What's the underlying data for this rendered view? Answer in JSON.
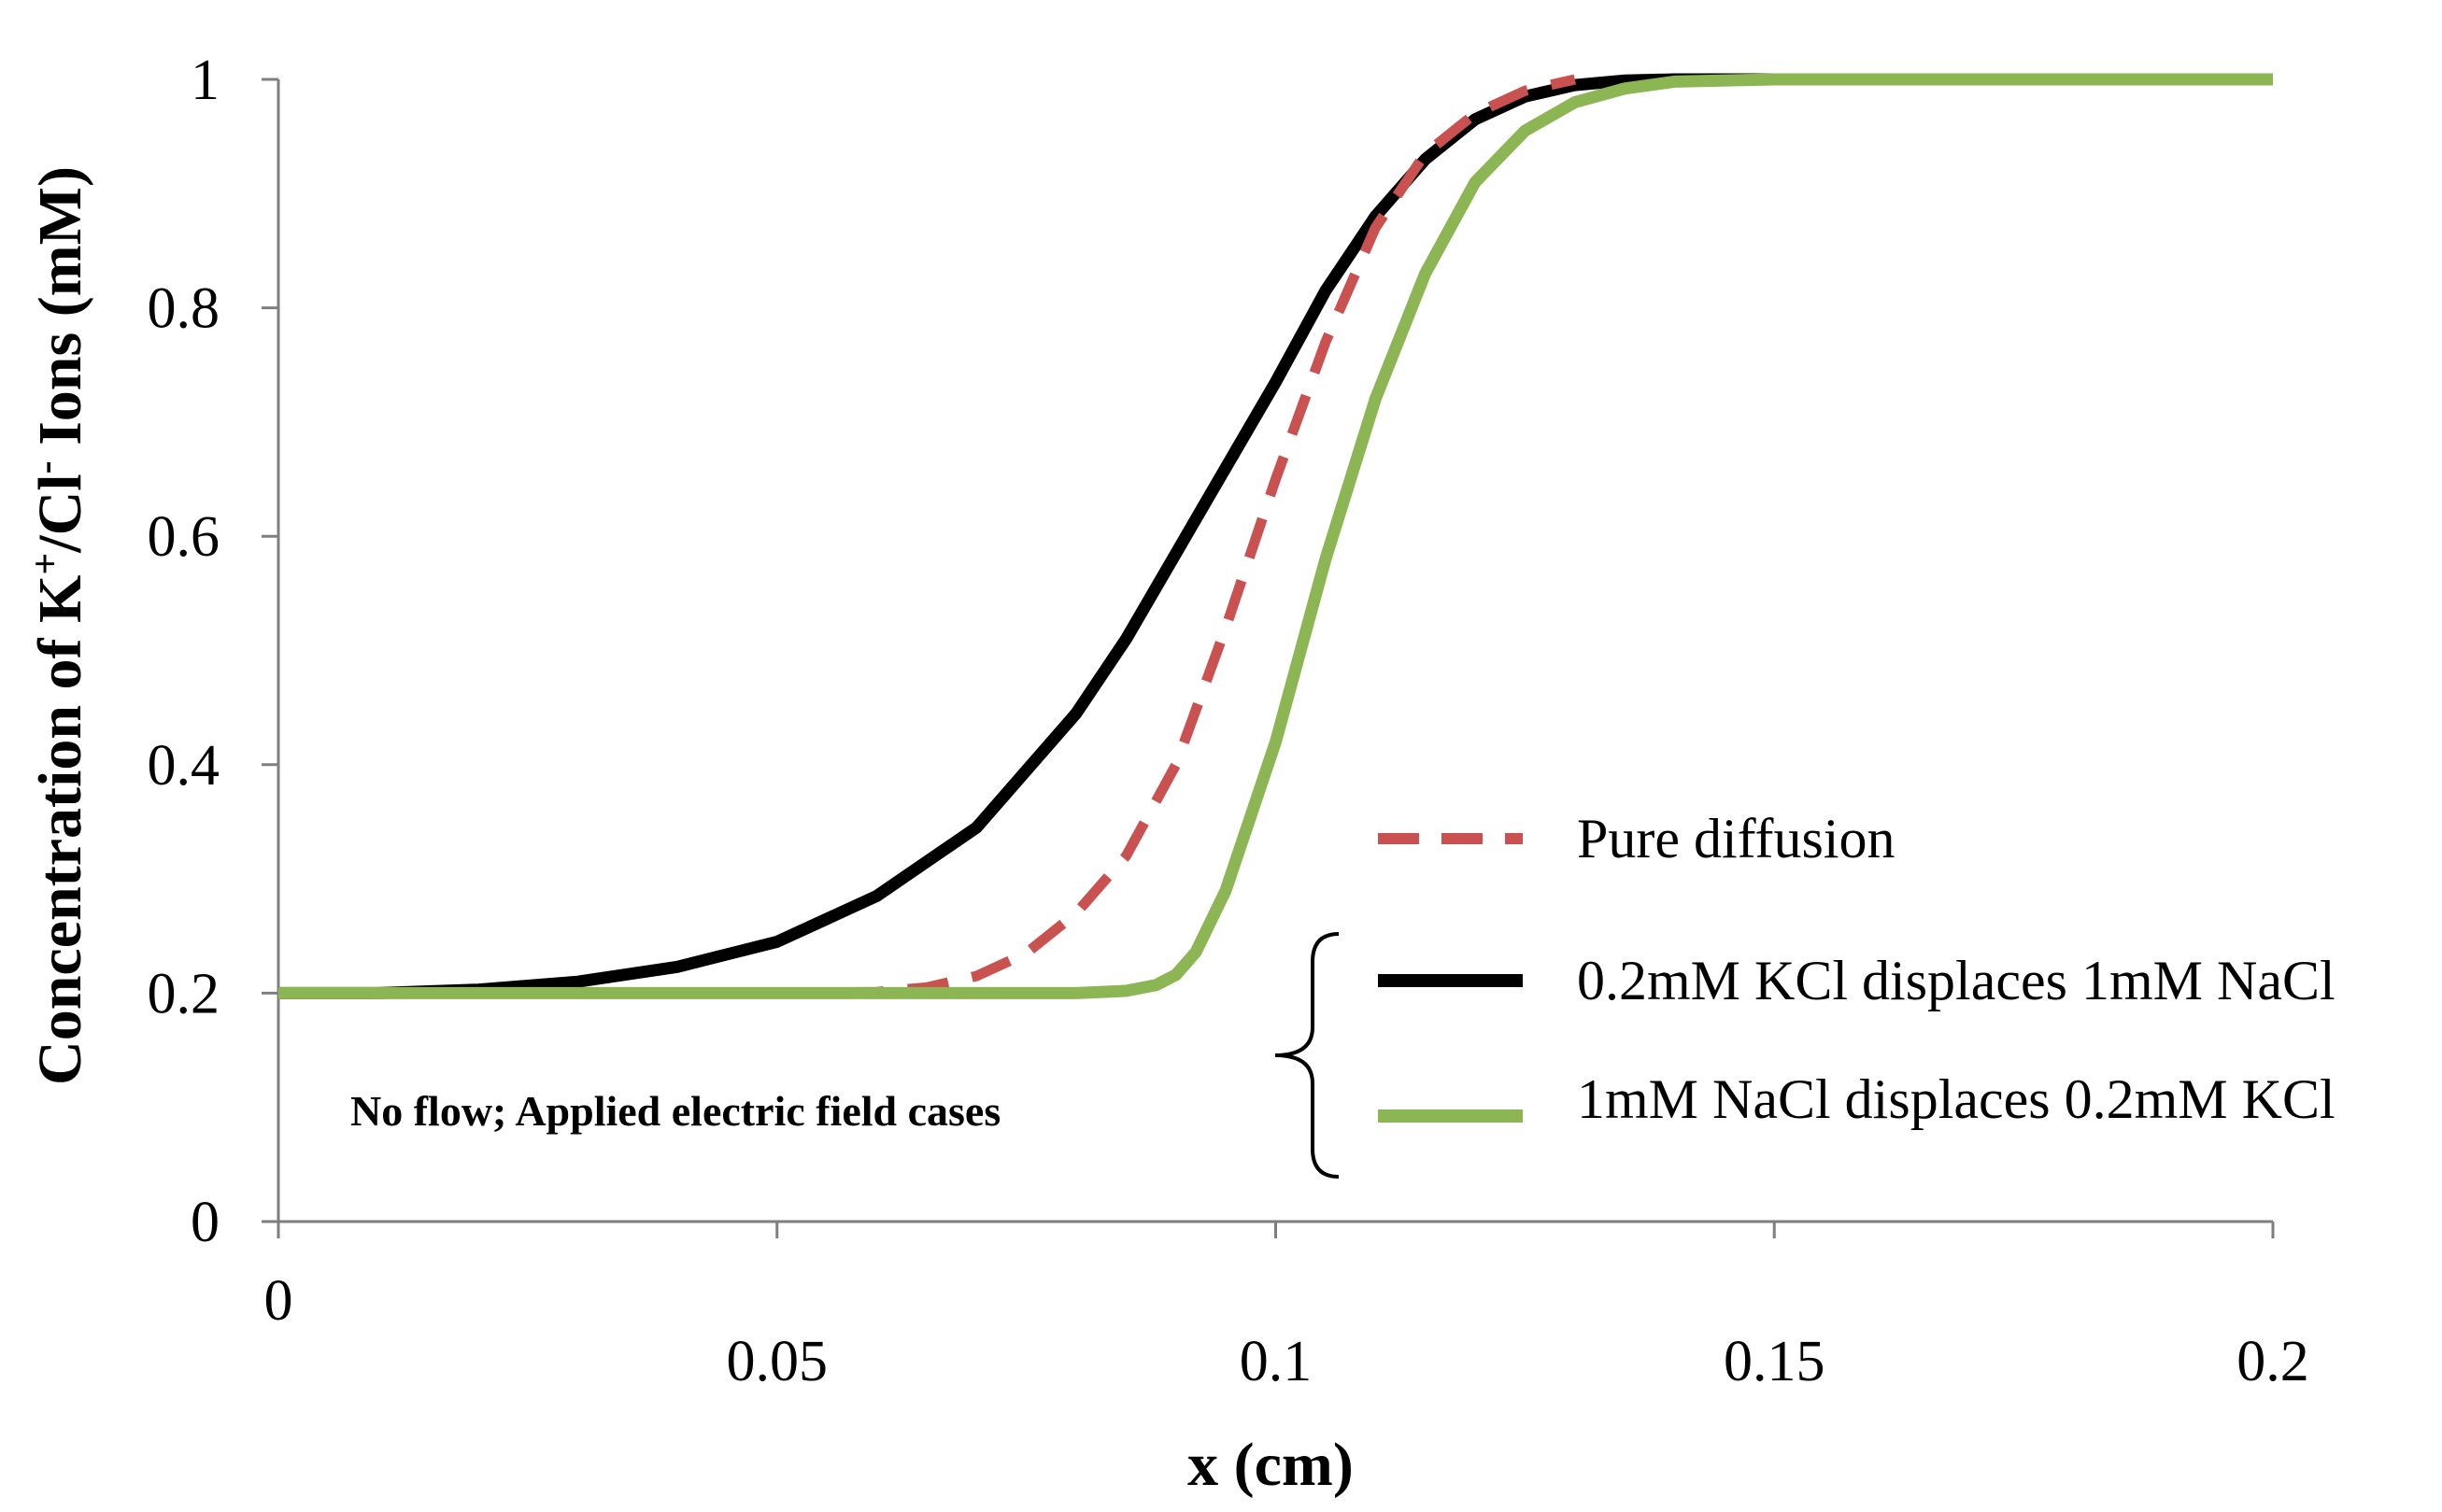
{
  "chart_data": {
    "type": "line",
    "title": "",
    "xlabel": "x (cm)",
    "ylabel": "Concentration of K⁺/Cl⁻ Ions (mM)",
    "ylabel_parts": [
      "Concentration of K",
      "+",
      "/Cl",
      "-",
      " Ions (mM)"
    ],
    "xlim": [
      0,
      0.2
    ],
    "ylim": [
      0,
      1
    ],
    "xticks": [
      "0",
      "0.05",
      "0.1",
      "0.15",
      "0.2"
    ],
    "yticks": [
      "0",
      "0.2",
      "0.4",
      "0.6",
      "0.8",
      "1"
    ],
    "grid": false,
    "legend_position": "right",
    "annotation": "No flow; Applied electric field cases",
    "series": [
      {
        "name": "Pure diffusion",
        "style": "dashed",
        "color": "#c9514f",
        "x": [
          0.05,
          0.06,
          0.065,
          0.07,
          0.075,
          0.08,
          0.085,
          0.09,
          0.095,
          0.1,
          0.105,
          0.11,
          0.115,
          0.12,
          0.125,
          0.13
        ],
        "y": [
          0.2,
          0.201,
          0.205,
          0.215,
          0.235,
          0.27,
          0.32,
          0.4,
          0.52,
          0.65,
          0.77,
          0.87,
          0.935,
          0.97,
          0.99,
          1.0
        ]
      },
      {
        "name": "0.2mM KCl displaces 1mM NaCl",
        "style": "solid",
        "color": "#000000",
        "x": [
          0,
          0.01,
          0.02,
          0.03,
          0.04,
          0.05,
          0.06,
          0.07,
          0.08,
          0.085,
          0.09,
          0.095,
          0.1,
          0.105,
          0.11,
          0.115,
          0.12,
          0.125,
          0.13,
          0.135,
          0.14,
          0.15,
          0.2
        ],
        "y": [
          0.2,
          0.2,
          0.203,
          0.21,
          0.223,
          0.245,
          0.285,
          0.345,
          0.445,
          0.51,
          0.585,
          0.66,
          0.735,
          0.815,
          0.88,
          0.93,
          0.965,
          0.985,
          0.995,
          0.999,
          1.0,
          1.0,
          1.0
        ]
      },
      {
        "name": "1mM NaCl displaces 0.2mM KCl",
        "style": "solid",
        "color": "#8cb653",
        "x": [
          0,
          0.05,
          0.08,
          0.085,
          0.088,
          0.09,
          0.092,
          0.095,
          0.1,
          0.105,
          0.11,
          0.115,
          0.12,
          0.125,
          0.13,
          0.135,
          0.14,
          0.15,
          0.2
        ],
        "y": [
          0.2,
          0.2,
          0.2,
          0.202,
          0.207,
          0.216,
          0.236,
          0.29,
          0.42,
          0.58,
          0.72,
          0.83,
          0.91,
          0.955,
          0.98,
          0.992,
          0.998,
          1.0,
          1.0
        ]
      }
    ]
  }
}
